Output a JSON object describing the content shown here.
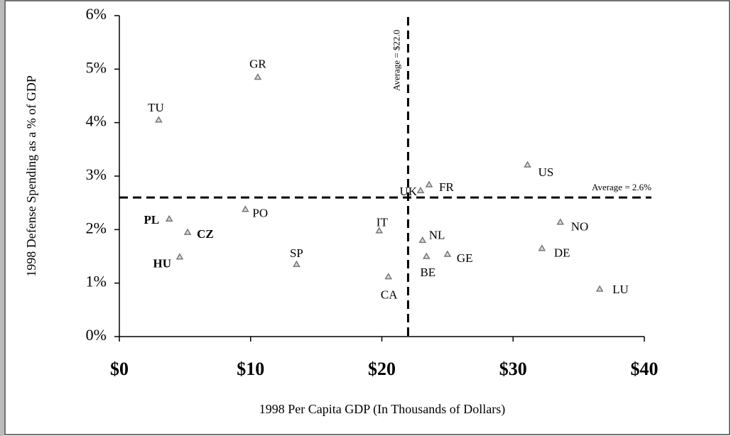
{
  "chart_data": {
    "type": "scatter",
    "xlabel": "1998 Per Capita GDP (In Thousands of Dollars)",
    "ylabel": "1998 Defense Spending as  a % of GDP",
    "labels": [
      "TU",
      "GR",
      "PL",
      "PO",
      "CZ",
      "HU",
      "SP",
      "IT",
      "CA",
      "UK",
      "FR",
      "NL",
      "BE",
      "GE",
      "US",
      "NO",
      "DE",
      "LU"
    ],
    "bold": [
      false,
      false,
      true,
      false,
      true,
      true,
      false,
      false,
      false,
      false,
      false,
      false,
      false,
      false,
      false,
      false,
      false,
      false
    ],
    "x": [
      3.0,
      10.55,
      3.8,
      9.6,
      5.2,
      4.6,
      13.5,
      19.8,
      20.5,
      22.95,
      23.6,
      23.1,
      23.4,
      25.0,
      31.1,
      33.6,
      32.2,
      36.6
    ],
    "y": [
      4.05,
      4.85,
      2.2,
      2.38,
      1.95,
      1.49,
      1.35,
      1.98,
      1.12,
      2.73,
      2.84,
      1.8,
      1.5,
      1.54,
      3.21,
      2.14,
      1.65,
      0.89
    ],
    "color": "#777777",
    "xlim": [
      0,
      40
    ],
    "xticks": [
      {
        "value": 0,
        "label": "$0"
      },
      {
        "value": 10,
        "label": "$10"
      },
      {
        "value": 20,
        "label": "$20"
      },
      {
        "value": 30,
        "label": "$30"
      },
      {
        "value": 40,
        "label": "$40"
      }
    ],
    "ylim": [
      0,
      6
    ],
    "yticks": [
      {
        "value": 0,
        "label": "0%"
      },
      {
        "value": 1,
        "label": "1%"
      },
      {
        "value": 2,
        "label": "2%"
      },
      {
        "value": 3,
        "label": "3%"
      },
      {
        "value": 4,
        "label": "4%"
      },
      {
        "value": 5,
        "label": "5%"
      },
      {
        "value": 6,
        "label": "6%"
      }
    ],
    "x_average": {
      "value": 22.0,
      "label": "Average = $22.0"
    },
    "y_average": {
      "value": 2.6,
      "label": "Average = 2.6%"
    }
  }
}
